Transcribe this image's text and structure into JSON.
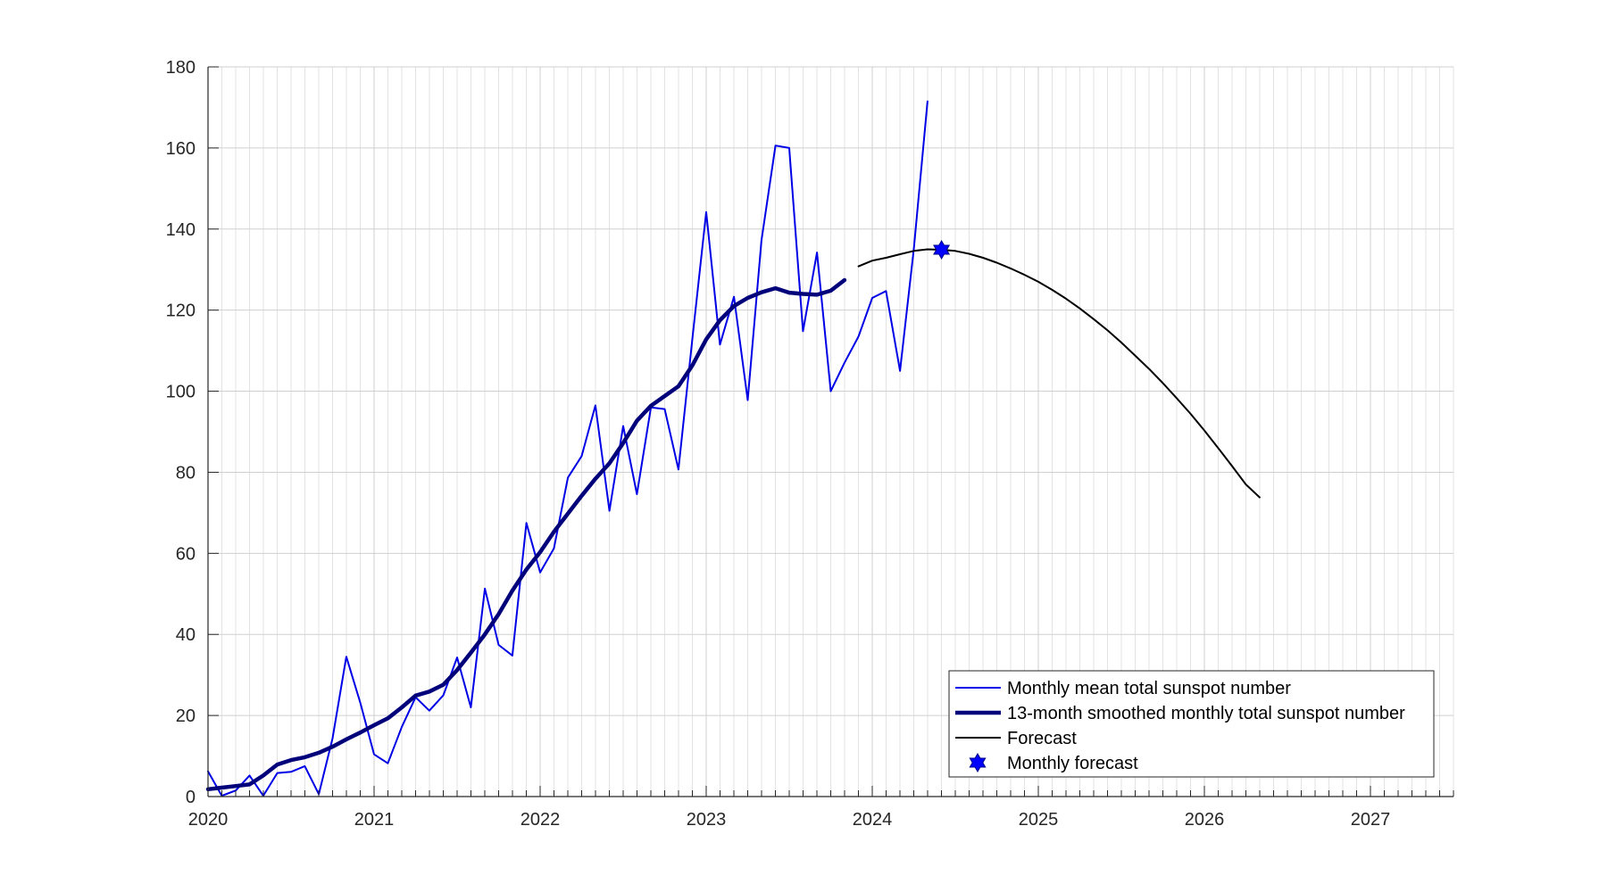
{
  "chart_data": {
    "type": "line",
    "title": "",
    "xlabel": "",
    "ylabel": "",
    "x_unit": "decimal year",
    "xlim": [
      2020,
      2027.5
    ],
    "ylim": [
      0,
      180
    ],
    "x_ticks": [
      2020,
      2021,
      2022,
      2023,
      2024,
      2025,
      2026,
      2027
    ],
    "x_tick_labels": [
      "2020",
      "2021",
      "2022",
      "2023",
      "2024",
      "2025",
      "2026",
      "2027"
    ],
    "y_ticks": [
      0,
      20,
      40,
      60,
      80,
      100,
      120,
      140,
      160,
      180
    ],
    "y_tick_labels": [
      "0",
      "20",
      "40",
      "60",
      "80",
      "100",
      "120",
      "140",
      "160",
      "180"
    ],
    "grid": true,
    "minor_grid_x": "monthly",
    "legend_position": "bottom-right",
    "legend_entries": [
      "Monthly mean total sunspot number",
      "13-month smoothed monthly total sunspot number",
      "Forecast",
      "Monthly forecast"
    ],
    "colors": {
      "monthly": "#0000e6",
      "smoothed": "#00007a",
      "forecast": "#000000",
      "marker": "#0000ff"
    },
    "series": [
      {
        "name": "Monthly mean total sunspot number",
        "x": [
          2020.0,
          2020.083,
          2020.167,
          2020.25,
          2020.333,
          2020.417,
          2020.5,
          2020.583,
          2020.667,
          2020.75,
          2020.833,
          2020.917,
          2021.0,
          2021.083,
          2021.167,
          2021.25,
          2021.333,
          2021.417,
          2021.5,
          2021.583,
          2021.667,
          2021.75,
          2021.833,
          2021.917,
          2022.0,
          2022.083,
          2022.167,
          2022.25,
          2022.333,
          2022.417,
          2022.5,
          2022.583,
          2022.667,
          2022.75,
          2022.833,
          2022.917,
          2023.0,
          2023.083,
          2023.167,
          2023.25,
          2023.333,
          2023.417,
          2023.5,
          2023.583,
          2023.667,
          2023.75,
          2023.833,
          2023.917,
          2024.0,
          2024.083,
          2024.167,
          2024.25,
          2024.333
        ],
        "values": [
          6.2,
          0.2,
          1.5,
          5.2,
          0.2,
          5.8,
          6.1,
          7.5,
          0.6,
          14.4,
          34.5,
          23.1,
          10.4,
          8.2,
          17.2,
          24.5,
          21.2,
          25.0,
          34.3,
          22.0,
          51.3,
          37.4,
          34.8,
          67.5,
          55.3,
          61.2,
          78.7,
          84.0,
          96.5,
          70.5,
          91.4,
          74.6,
          96.0,
          95.6,
          80.7,
          113.1,
          144.2,
          111.5,
          123.3,
          97.8,
          137.2,
          160.6,
          160.0,
          114.8,
          134.2,
          100.0,
          107.0,
          113.5,
          123.0,
          124.7,
          105.0,
          135.0,
          171.5
        ]
      },
      {
        "name": "13-month smoothed monthly total sunspot number",
        "x": [
          2020.0,
          2020.083,
          2020.167,
          2020.25,
          2020.333,
          2020.417,
          2020.5,
          2020.583,
          2020.667,
          2020.75,
          2020.833,
          2020.917,
          2021.0,
          2021.083,
          2021.167,
          2021.25,
          2021.333,
          2021.417,
          2021.5,
          2021.583,
          2021.667,
          2021.75,
          2021.833,
          2021.917,
          2022.0,
          2022.083,
          2022.167,
          2022.25,
          2022.333,
          2022.417,
          2022.5,
          2022.583,
          2022.667,
          2022.75,
          2022.833,
          2022.917,
          2023.0,
          2023.083,
          2023.167,
          2023.25,
          2023.333,
          2023.417,
          2023.5,
          2023.583,
          2023.667,
          2023.75,
          2023.833
        ],
        "values": [
          1.8,
          2.2,
          2.6,
          3.0,
          5.2,
          7.9,
          9.0,
          9.7,
          10.8,
          12.3,
          14.1,
          15.8,
          17.6,
          19.3,
          22.0,
          24.9,
          25.9,
          27.6,
          31.2,
          35.5,
          40.0,
          45.0,
          50.8,
          56.0,
          60.3,
          65.3,
          69.8,
          74.2,
          78.4,
          82.2,
          87.2,
          92.7,
          96.4,
          98.8,
          101.2,
          106.4,
          112.8,
          117.5,
          121.0,
          123.0,
          124.4,
          125.4,
          124.3,
          124.0,
          123.8,
          124.8,
          127.4
        ]
      },
      {
        "name": "Forecast",
        "x": [
          2023.917,
          2024.0,
          2024.083,
          2024.167,
          2024.25,
          2024.333,
          2024.417,
          2024.5,
          2024.583,
          2024.667,
          2024.75,
          2024.833,
          2024.917,
          2025.0,
          2025.083,
          2025.167,
          2025.25,
          2025.333,
          2025.417,
          2025.5,
          2025.583,
          2025.667,
          2025.75,
          2025.833,
          2025.917,
          2026.0,
          2026.083,
          2026.167,
          2026.25,
          2026.333
        ],
        "values": [
          130.8,
          132.2,
          132.9,
          133.8,
          134.6,
          135.0,
          134.9,
          134.6,
          133.9,
          132.9,
          131.7,
          130.3,
          128.7,
          127.0,
          125.0,
          122.8,
          120.4,
          117.8,
          115.0,
          112.0,
          108.8,
          105.5,
          102.0,
          98.3,
          94.4,
          90.3,
          86.0,
          81.5,
          77.0,
          73.8
        ]
      },
      {
        "name": "Monthly forecast",
        "x": [
          2024.417
        ],
        "values": [
          134.9
        ]
      }
    ]
  }
}
